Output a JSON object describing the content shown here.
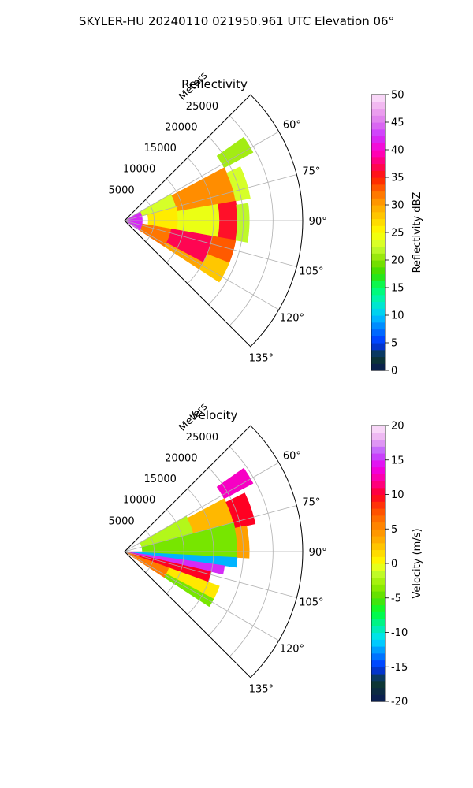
{
  "figure_title": "SKYLER-HU  20240110  021950.961 UTC Elevation 06°",
  "chart_data": [
    {
      "type": "heatmap",
      "projection": "polar-sector",
      "title": "Reflectivity",
      "radial_label": "Meters",
      "radial_ticks": [
        5000,
        10000,
        15000,
        20000,
        25000
      ],
      "radial_range": [
        0,
        30000
      ],
      "azimuth_range_deg": [
        45,
        135
      ],
      "azimuth_ticks_deg": [
        60,
        75,
        90,
        105,
        120,
        135
      ],
      "azimuth_tick_labels": [
        "60°",
        "75°",
        "90°",
        "105°",
        "120°",
        "135°"
      ],
      "data_sector_deg": [
        55,
        123
      ],
      "grid": true,
      "colorbar": {
        "label": "Reflectivity dBZ",
        "range": [
          0,
          50
        ],
        "ticks": [
          0,
          5,
          10,
          15,
          20,
          25,
          30,
          35,
          40,
          45,
          50
        ],
        "stops": [
          {
            "v": 0,
            "c": "#0a1a55"
          },
          {
            "v": 2.5,
            "c": "#0d3b2e"
          },
          {
            "v": 5,
            "c": "#0033ff"
          },
          {
            "v": 8,
            "c": "#0088ff"
          },
          {
            "v": 10,
            "c": "#00c8ff"
          },
          {
            "v": 12.5,
            "c": "#00f0c0"
          },
          {
            "v": 15,
            "c": "#00ff66"
          },
          {
            "v": 17.5,
            "c": "#33dd00"
          },
          {
            "v": 20,
            "c": "#88e000"
          },
          {
            "v": 22.5,
            "c": "#ccff33"
          },
          {
            "v": 25,
            "c": "#ffff00"
          },
          {
            "v": 27.5,
            "c": "#ffd000"
          },
          {
            "v": 30,
            "c": "#ffa500"
          },
          {
            "v": 32.5,
            "c": "#ff6a00"
          },
          {
            "v": 35,
            "c": "#ff1a00"
          },
          {
            "v": 37.5,
            "c": "#ff0066"
          },
          {
            "v": 40,
            "c": "#ff00cc"
          },
          {
            "v": 42.5,
            "c": "#cc33ff"
          },
          {
            "v": 45,
            "c": "#dd77ee"
          },
          {
            "v": 47.5,
            "c": "#eeaaee"
          },
          {
            "v": 50,
            "c": "#fde4fb"
          }
        ]
      },
      "regions": [
        {
          "az": [
            55,
            62
          ],
          "r": [
            19000,
            24500
          ],
          "value": 21
        },
        {
          "az": [
            60,
            75
          ],
          "r": [
            3000,
            9000
          ],
          "value": 23
        },
        {
          "az": [
            62,
            80
          ],
          "r": [
            9000,
            19000
          ],
          "value": 31
        },
        {
          "az": [
            65,
            80
          ],
          "r": [
            19000,
            21500
          ],
          "value": 23
        },
        {
          "az": [
            75,
            100
          ],
          "r": [
            4000,
            9000
          ],
          "value": 26
        },
        {
          "az": [
            80,
            100
          ],
          "r": [
            9000,
            16000
          ],
          "value": 24
        },
        {
          "az": [
            80,
            100
          ],
          "r": [
            16000,
            19000
          ],
          "value": 36
        },
        {
          "az": [
            82,
            100
          ],
          "r": [
            19000,
            21000
          ],
          "value": 22
        },
        {
          "az": [
            100,
            123
          ],
          "r": [
            3000,
            8000
          ],
          "value": 32
        },
        {
          "az": [
            100,
            118
          ],
          "r": [
            8000,
            15000
          ],
          "value": 37
        },
        {
          "az": [
            100,
            112
          ],
          "r": [
            15000,
            19000
          ],
          "value": 33
        },
        {
          "az": [
            112,
            123
          ],
          "r": [
            15000,
            19000
          ],
          "value": 28
        },
        {
          "az": [
            118,
            123
          ],
          "r": [
            8000,
            15000
          ],
          "value": 30
        },
        {
          "az": [
            60,
            123
          ],
          "r": [
            0,
            3000
          ],
          "value": 42
        }
      ]
    },
    {
      "type": "heatmap",
      "projection": "polar-sector",
      "title": "Velocity",
      "radial_label": "Meters",
      "radial_ticks": [
        5000,
        10000,
        15000,
        20000,
        25000
      ],
      "radial_range": [
        0,
        30000
      ],
      "azimuth_range_deg": [
        45,
        135
      ],
      "azimuth_ticks_deg": [
        60,
        75,
        90,
        105,
        120,
        135
      ],
      "azimuth_tick_labels": [
        "60°",
        "75°",
        "90°",
        "105°",
        "120°",
        "135°"
      ],
      "data_sector_deg": [
        55,
        123
      ],
      "grid": true,
      "colorbar": {
        "label": "Velocity (m/s)",
        "range": [
          -20,
          20
        ],
        "ticks": [
          -20,
          -15,
          -10,
          -5,
          0,
          5,
          10,
          15,
          20
        ],
        "stops": [
          {
            "v": -20,
            "c": "#0a1a55"
          },
          {
            "v": -17,
            "c": "#0d3b2e"
          },
          {
            "v": -15,
            "c": "#0033ff"
          },
          {
            "v": -13,
            "c": "#0088ff"
          },
          {
            "v": -11,
            "c": "#00e0ff"
          },
          {
            "v": -9,
            "c": "#00f0a0"
          },
          {
            "v": -7,
            "c": "#00ff33"
          },
          {
            "v": -5,
            "c": "#55dd00"
          },
          {
            "v": -3,
            "c": "#99ee00"
          },
          {
            "v": -1,
            "c": "#ccff33"
          },
          {
            "v": 0,
            "c": "#ffff00"
          },
          {
            "v": 2,
            "c": "#ffd000"
          },
          {
            "v": 4,
            "c": "#ffa000"
          },
          {
            "v": 6,
            "c": "#ff7a00"
          },
          {
            "v": 8,
            "c": "#ff4400"
          },
          {
            "v": 10,
            "c": "#ff0022"
          },
          {
            "v": 12,
            "c": "#ff0099"
          },
          {
            "v": 14,
            "c": "#ee00ee"
          },
          {
            "v": 16,
            "c": "#bb55ff"
          },
          {
            "v": 18,
            "c": "#e9aaf0"
          },
          {
            "v": 20,
            "c": "#fde4fb"
          }
        ]
      },
      "regions": [
        {
          "az": [
            55,
            62
          ],
          "r": [
            19000,
            24500
          ],
          "value": 13
        },
        {
          "az": [
            60,
            75
          ],
          "r": [
            3000,
            12000
          ],
          "value": -2
        },
        {
          "az": [
            62,
            78
          ],
          "r": [
            12000,
            19000
          ],
          "value": 3
        },
        {
          "az": [
            64,
            78
          ],
          "r": [
            19000,
            22500
          ],
          "value": 10
        },
        {
          "az": [
            75,
            93
          ],
          "r": [
            3000,
            19000
          ],
          "value": -4
        },
        {
          "az": [
            78,
            93
          ],
          "r": [
            19000,
            21000
          ],
          "value": 4
        },
        {
          "az": [
            93,
            98
          ],
          "r": [
            0,
            19000
          ],
          "value": -12
        },
        {
          "az": [
            98,
            103
          ],
          "r": [
            0,
            17000
          ],
          "value": 15
        },
        {
          "az": [
            103,
            110
          ],
          "r": [
            0,
            15000
          ],
          "value": 10
        },
        {
          "az": [
            110,
            123
          ],
          "r": [
            0,
            8000
          ],
          "value": 6
        },
        {
          "az": [
            110,
            118
          ],
          "r": [
            8000,
            17000
          ],
          "value": 1
        },
        {
          "az": [
            118,
            123
          ],
          "r": [
            8000,
            17000
          ],
          "value": -4
        }
      ]
    }
  ]
}
